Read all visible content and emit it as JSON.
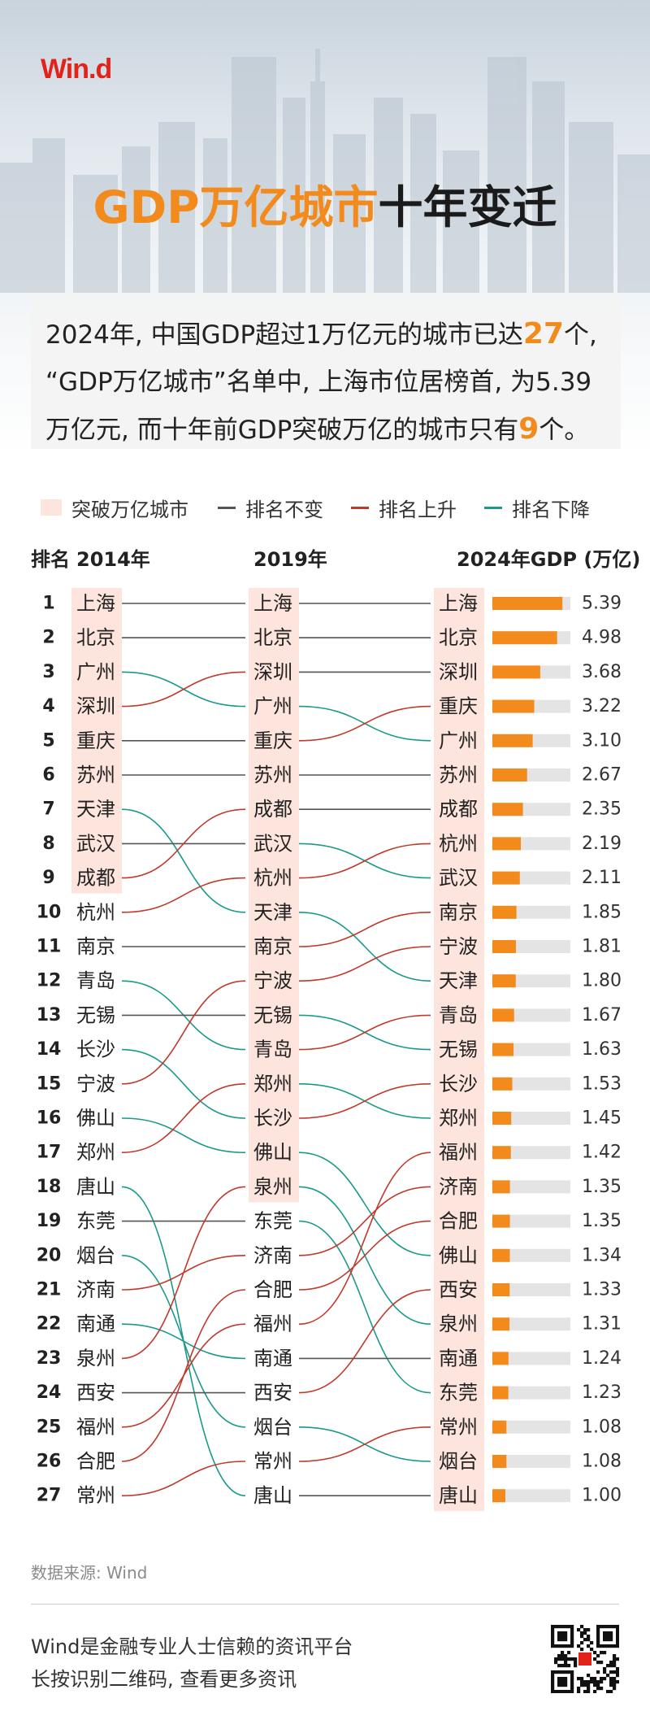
{
  "brand": {
    "logo_text": "Win.d",
    "accent": "#e2231a"
  },
  "title": {
    "highlight": "GDP万亿城市",
    "rest": "十年变迁"
  },
  "intro": {
    "part1": "2024年, 中国GDP超过1万亿元的城市已达",
    "num1": "27",
    "part2": "个, “GDP万亿城市”名单中, 上海市位居榜首, 为5.39万亿元, 而十年前GDP突破万亿的城市只有",
    "num2": "9",
    "part3": "个。"
  },
  "legend": [
    {
      "label": "突破万亿城市",
      "kind": "swatch",
      "color": "#fde4dc"
    },
    {
      "label": "排名不变",
      "kind": "line",
      "color": "#555555"
    },
    {
      "label": "排名上升",
      "kind": "line",
      "color": "#c0392b"
    },
    {
      "label": "排名下降",
      "kind": "line",
      "color": "#1a9a8a"
    }
  ],
  "chart_data": {
    "type": "table",
    "headers": {
      "rank": "排名",
      "y2014": "2014年",
      "y2019": "2019年",
      "y2024": "2024年GDP (万亿)"
    },
    "ranks": [
      1,
      2,
      3,
      4,
      5,
      6,
      7,
      8,
      9,
      10,
      11,
      12,
      13,
      14,
      15,
      16,
      17,
      18,
      19,
      20,
      21,
      22,
      23,
      24,
      25,
      26,
      27
    ],
    "cities_2014": [
      "上海",
      "北京",
      "广州",
      "深圳",
      "重庆",
      "苏州",
      "天津",
      "武汉",
      "成都",
      "杭州",
      "南京",
      "青岛",
      "无锡",
      "长沙",
      "宁波",
      "佛山",
      "郑州",
      "唐山",
      "东莞",
      "烟台",
      "济南",
      "南通",
      "泉州",
      "西安",
      "福州",
      "合肥",
      "常州"
    ],
    "cities_2019": [
      "上海",
      "北京",
      "深圳",
      "广州",
      "重庆",
      "苏州",
      "成都",
      "武汉",
      "杭州",
      "天津",
      "南京",
      "宁波",
      "无锡",
      "青岛",
      "郑州",
      "长沙",
      "佛山",
      "泉州",
      "东莞",
      "济南",
      "合肥",
      "福州",
      "南通",
      "西安",
      "烟台",
      "常州",
      "唐山"
    ],
    "cities_2024": [
      "上海",
      "北京",
      "深圳",
      "重庆",
      "广州",
      "苏州",
      "成都",
      "杭州",
      "武汉",
      "南京",
      "宁波",
      "天津",
      "青岛",
      "无锡",
      "长沙",
      "郑州",
      "福州",
      "济南",
      "合肥",
      "佛山",
      "西安",
      "泉州",
      "南通",
      "东莞",
      "常州",
      "烟台",
      "唐山"
    ],
    "gdp_2024": [
      "5.39",
      "4.98",
      "3.68",
      "3.22",
      "3.10",
      "2.67",
      "2.35",
      "2.19",
      "2.11",
      "1.85",
      "1.81",
      "1.80",
      "1.67",
      "1.63",
      "1.53",
      "1.45",
      "1.42",
      "1.35",
      "1.35",
      "1.34",
      "1.33",
      "1.31",
      "1.24",
      "1.23",
      "1.08",
      "1.08",
      "1.00"
    ],
    "trillion_count_2014": 9,
    "trillion_count_2019": 18,
    "bar_max": 6,
    "colors": {
      "bar": "#f28a1c",
      "bar_track": "#e4e4e4",
      "highlight": "#fde4dc",
      "unchanged": "#555555",
      "up": "#c0392b",
      "down": "#1a9a8a"
    }
  },
  "source": "数据来源: Wind",
  "footer": {
    "line1": "Wind是金融专业人士信赖的资讯平台",
    "line2": "长按识别二维码, 查看更多资讯"
  }
}
